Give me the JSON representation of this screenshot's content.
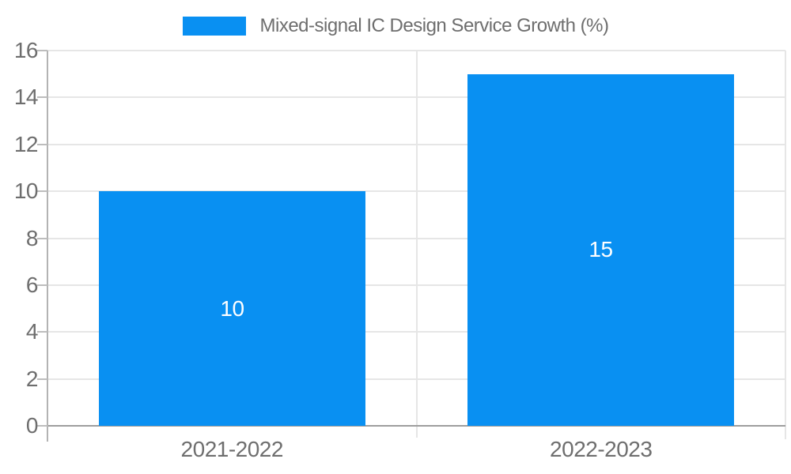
{
  "chart_data": {
    "type": "bar",
    "title": "Mixed-signal IC Design Service Growth (%)",
    "legend": {
      "position": "top",
      "entries": [
        "Mixed-signal IC Design Service Growth (%)"
      ]
    },
    "categories": [
      "2021-2022",
      "2022-2023"
    ],
    "series": [
      {
        "name": "Mixed-signal IC Design Service Growth (%)",
        "values": [
          10,
          15
        ]
      }
    ],
    "value_labels": [
      "10",
      "15"
    ],
    "xlabel": "",
    "ylabel": "",
    "ylim": [
      0,
      16
    ],
    "ytick_step": 2,
    "yticks": [
      0,
      2,
      4,
      6,
      8,
      10,
      12,
      14,
      16
    ],
    "grid": true,
    "colors": {
      "bar": "#0990F2",
      "grid_line": "#e6e6e6",
      "axis_line": "#b3b3b3",
      "tick_mark": "#bdbdbd",
      "baseline": "#9e9e9e",
      "text": "#6e6e6e",
      "bar_label_text": "#ffffff",
      "background": "#ffffff"
    }
  }
}
